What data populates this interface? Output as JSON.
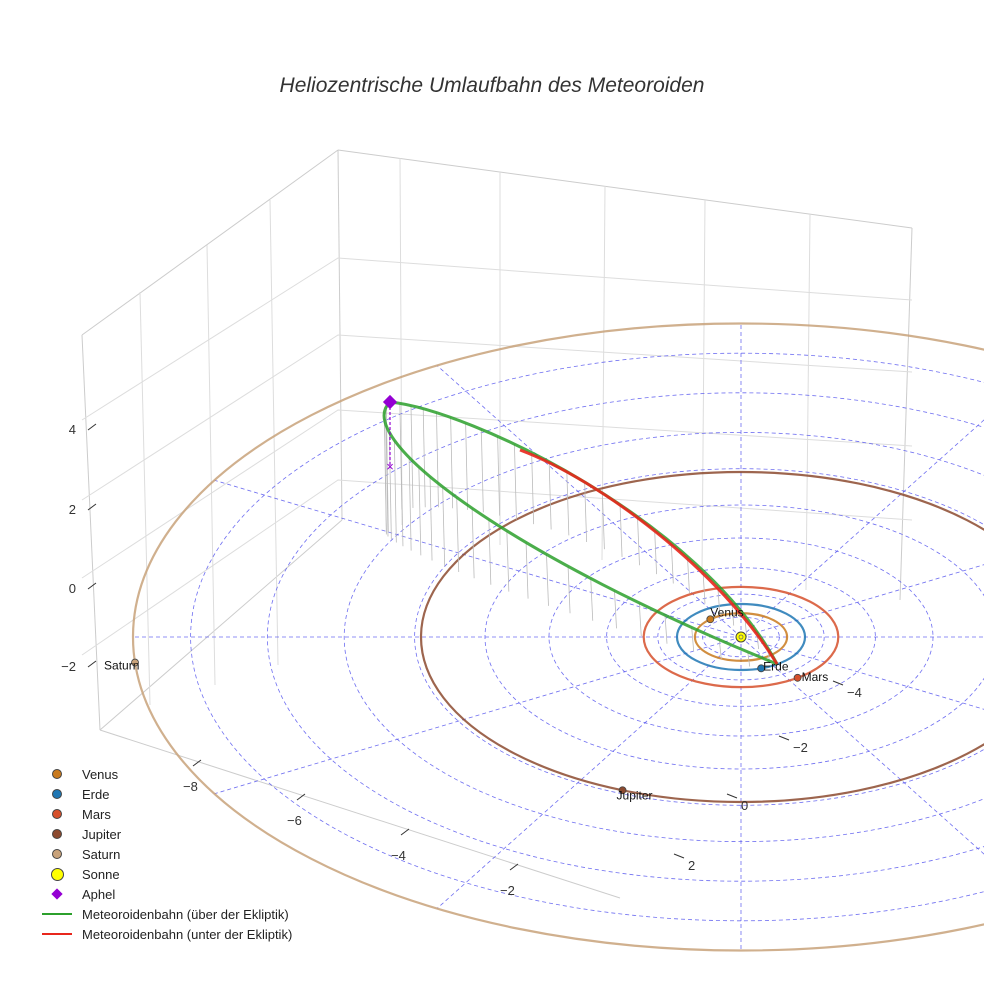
{
  "chart_data": {
    "type": "scatter3d",
    "title": "Heliozentrische Umlaufbahn des Meteoroiden",
    "z_ticks": [
      "4",
      "2",
      "0",
      "−2"
    ],
    "y_ticks": [
      "−4",
      "−2",
      "0",
      "2"
    ],
    "x_ticks": [
      "−8",
      "−6",
      "−4",
      "−2"
    ],
    "planets": [
      {
        "name": "Venus",
        "label": "Venus",
        "color": "#c97a1e",
        "orbit_radius_au": 0.72
      },
      {
        "name": "Erde",
        "label": "Erde",
        "color": "#1f77b4",
        "orbit_radius_au": 1.0
      },
      {
        "name": "Mars",
        "label": "Mars",
        "color": "#d6502b",
        "orbit_radius_au": 1.52
      },
      {
        "name": "Jupiter",
        "label": "Jupiter",
        "color": "#8c4a2f",
        "orbit_radius_au": 5.2
      },
      {
        "name": "Saturn",
        "label": "Saturn",
        "color": "#c8a27a",
        "orbit_radius_au": 9.5
      }
    ],
    "sun": {
      "name": "Sonne",
      "color": "#ffff00"
    },
    "aphel": {
      "name": "Aphel",
      "color": "#9400d3",
      "z": 4.3
    },
    "orbit_above": {
      "name": "Meteoroidenbahn (über der Ekliptik)",
      "color": "#2ca02c"
    },
    "orbit_below": {
      "name": "Meteoroidenbahn (unter der Ekliptik)",
      "color": "#e8261c"
    },
    "grid_color": "#5555ee"
  },
  "legend": [
    {
      "label": "Venus",
      "symbol": "dot",
      "color": "#c97a1e"
    },
    {
      "label": "Erde",
      "symbol": "dot",
      "color": "#1f77b4"
    },
    {
      "label": "Mars",
      "symbol": "dot",
      "color": "#d6502b"
    },
    {
      "label": "Jupiter",
      "symbol": "dot",
      "color": "#8c4a2f"
    },
    {
      "label": "Saturn",
      "symbol": "dot",
      "color": "#c8a27a"
    },
    {
      "label": "Sonne",
      "symbol": "bigdot",
      "color": "#ffff00"
    },
    {
      "label": "Aphel",
      "symbol": "diamond",
      "color": "#9400d3"
    },
    {
      "label": "Meteoroidenbahn (über der Ekliptik)",
      "symbol": "line",
      "color": "#2ca02c"
    },
    {
      "label": "Meteoroidenbahn (unter der Ekliptik)",
      "symbol": "line",
      "color": "#e8261c"
    }
  ]
}
